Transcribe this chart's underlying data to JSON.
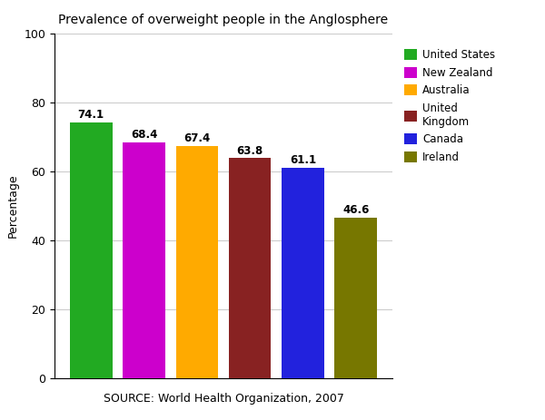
{
  "title": "Prevalence of overweight people in the Anglosphere",
  "categories": [
    "United States",
    "New Zealand",
    "Australia",
    "United Kingdom",
    "Canada",
    "Ireland"
  ],
  "values": [
    74.1,
    68.4,
    67.4,
    63.8,
    61.1,
    46.6
  ],
  "bar_colors": [
    "#22aa22",
    "#cc00cc",
    "#ffaa00",
    "#882222",
    "#2222dd",
    "#777700"
  ],
  "ylabel": "Percentage",
  "xlabel_source": "SOURCE: World Health Organization, 2007",
  "ylim": [
    0,
    100
  ],
  "yticks": [
    0,
    20,
    40,
    60,
    80,
    100
  ],
  "legend_labels": [
    "United States",
    "New Zealand",
    "Australia",
    "United\nKingdom",
    "Canada",
    "Ireland"
  ],
  "legend_colors": [
    "#22aa22",
    "#cc00cc",
    "#ffaa00",
    "#882222",
    "#2222dd",
    "#777700"
  ],
  "background_color": "#ffffff"
}
